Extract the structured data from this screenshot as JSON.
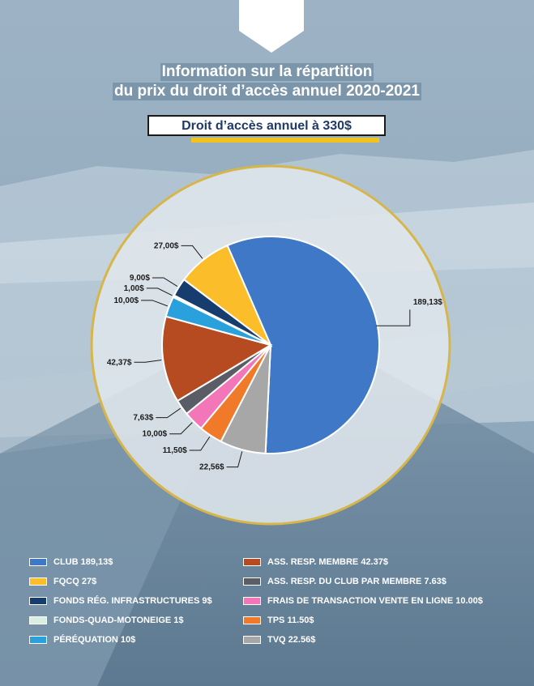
{
  "header": {
    "title_lines": [
      "Information sur la répartition",
      "du prix du droit d’accès annuel 2020-2021"
    ],
    "subtitle": "Droit d’accès annuel à 330$"
  },
  "colors": {
    "accent_yellow": "#f3c21d",
    "ring": "#d6b64a"
  },
  "chart_data": {
    "type": "pie",
    "title": "Information sur la répartition du prix du droit d’accès annuel 2020-2021",
    "subtitle": "Droit d’accès annuel à 330$",
    "legend_position": "bottom",
    "slices": [
      {
        "name": "CLUB 189,13$",
        "value": 189.13,
        "label": "189,13$",
        "color": "#3f78c6"
      },
      {
        "name": "TVQ 22.56$",
        "value": 22.56,
        "label": "22,56$",
        "color": "#a7a7a7"
      },
      {
        "name": "TPS 11.50$",
        "value": 11.5,
        "label": "11,50$",
        "color": "#f0792a"
      },
      {
        "name": "FRAIS DE TRANSACTION VENTE EN LIGNE 10.00$",
        "value": 10.0,
        "label": "10,00$",
        "color": "#f276b8"
      },
      {
        "name": "ASS. RESP. DU CLUB PAR MEMBRE 7.63$",
        "value": 7.63,
        "label": "7,63$",
        "color": "#5a5d66"
      },
      {
        "name": "ASS. RESP. MEMBRE 42.37$",
        "value": 42.37,
        "label": "42,37$",
        "color": "#b64b22"
      },
      {
        "name": "PÉRÉQUATION 10$",
        "value": 10.0,
        "label": "10,00$",
        "color": "#2aa0dc"
      },
      {
        "name": "FONDS-QUAD-MOTONEIGE 1$",
        "value": 1.0,
        "label": "1,00$",
        "color": "#d9efe1"
      },
      {
        "name": "FONDS RÉG. INFRASTRUCTURES 9$",
        "value": 9.0,
        "label": "9,00$",
        "color": "#173d6f"
      },
      {
        "name": "FQCQ 27$",
        "value": 27.0,
        "label": "27,00$",
        "color": "#fbbd2a"
      }
    ]
  },
  "legend": [
    {
      "label": "CLUB 189,13$",
      "color": "#3f78c6"
    },
    {
      "label": "FQCQ 27$",
      "color": "#fbbd2a"
    },
    {
      "label": "FONDS RÉG. INFRASTRUCTURES 9$",
      "color": "#173d6f"
    },
    {
      "label": "FONDS-QUAD-MOTONEIGE 1$",
      "color": "#d9efe1"
    },
    {
      "label": "PÉRÉQUATION 10$",
      "color": "#2aa0dc"
    },
    {
      "label": "ASS. RESP. MEMBRE 42.37$",
      "color": "#b64b22"
    },
    {
      "label": "ASS. RESP. DU CLUB PAR MEMBRE 7.63$",
      "color": "#5a5d66"
    },
    {
      "label": "FRAIS DE TRANSACTION VENTE EN LIGNE 10.00$",
      "color": "#f276b8"
    },
    {
      "label": "TPS 11.50$",
      "color": "#f0792a"
    },
    {
      "label": "TVQ 22.56$",
      "color": "#a7a7a7"
    }
  ]
}
